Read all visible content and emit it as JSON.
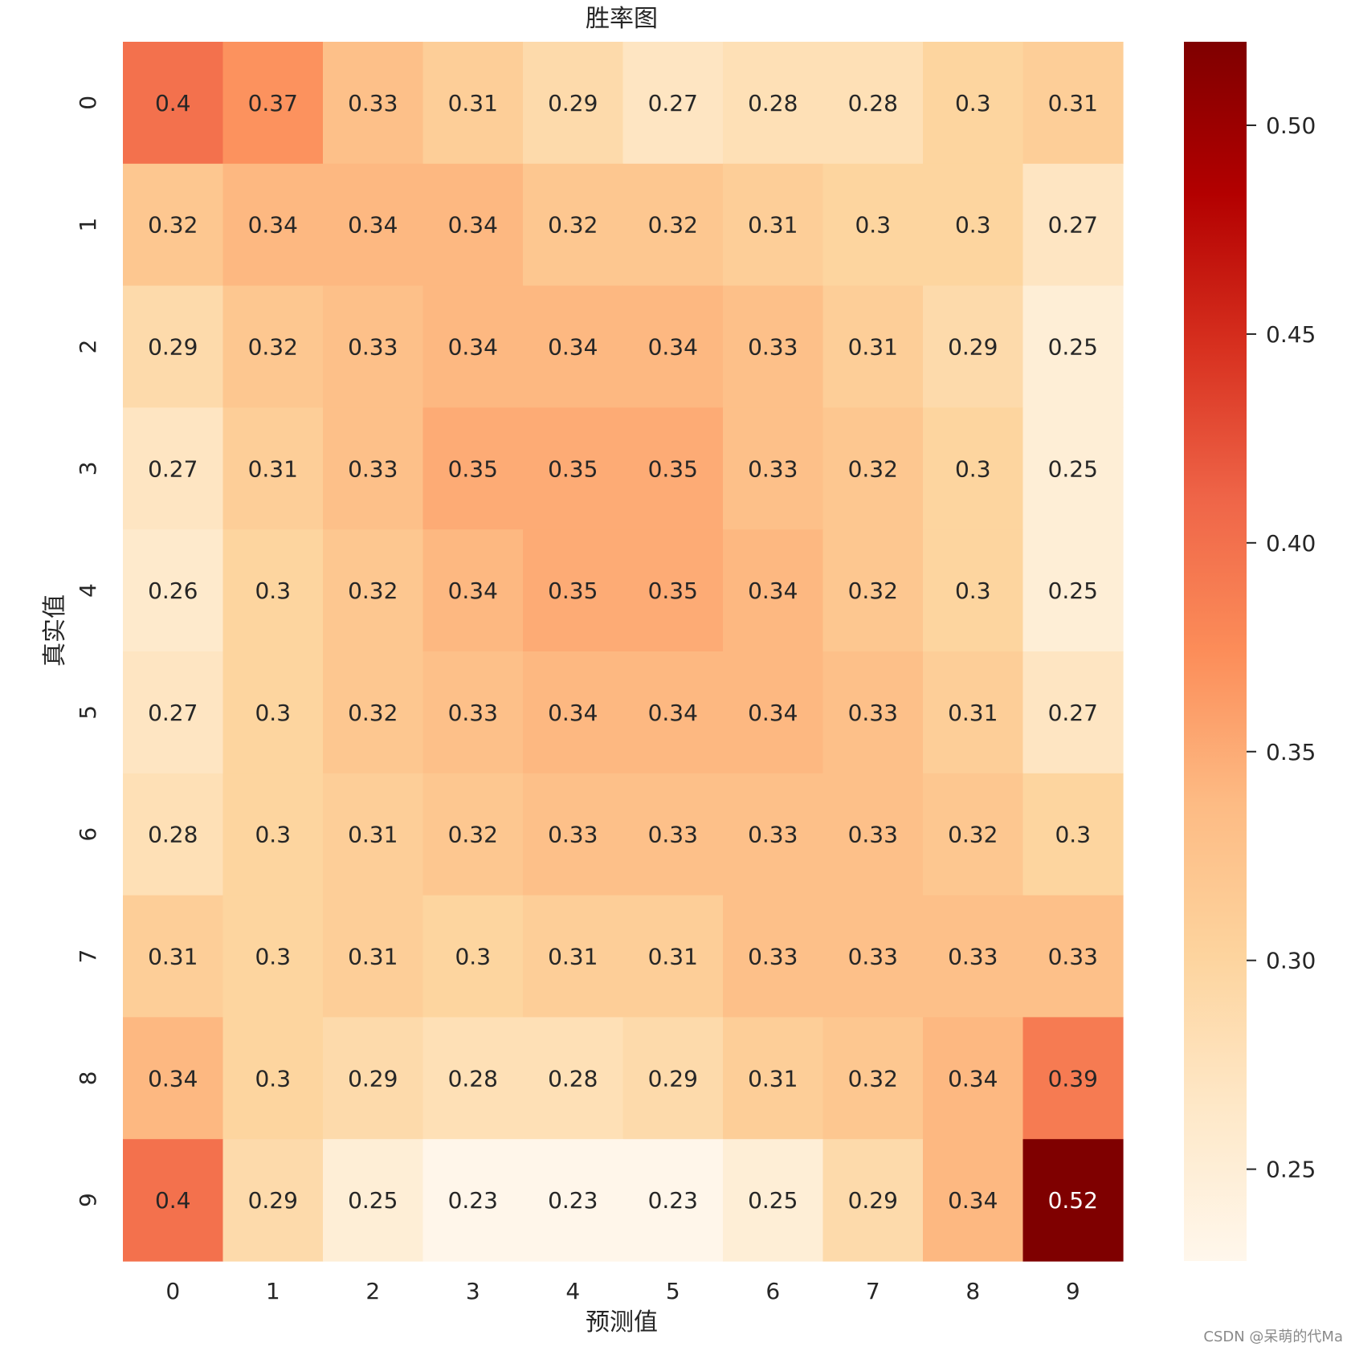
{
  "chart_data": {
    "type": "heatmap",
    "title": "胜率图",
    "xlabel": "预测值",
    "ylabel": "真实值",
    "x_categories": [
      "0",
      "1",
      "2",
      "3",
      "4",
      "5",
      "6",
      "7",
      "8",
      "9"
    ],
    "y_categories": [
      "0",
      "1",
      "2",
      "3",
      "4",
      "5",
      "6",
      "7",
      "8",
      "9"
    ],
    "values": [
      [
        0.4,
        0.37,
        0.33,
        0.31,
        0.29,
        0.27,
        0.28,
        0.28,
        0.3,
        0.31
      ],
      [
        0.32,
        0.34,
        0.34,
        0.34,
        0.32,
        0.32,
        0.31,
        0.3,
        0.3,
        0.27
      ],
      [
        0.29,
        0.32,
        0.33,
        0.34,
        0.34,
        0.34,
        0.33,
        0.31,
        0.29,
        0.25
      ],
      [
        0.27,
        0.31,
        0.33,
        0.35,
        0.35,
        0.35,
        0.33,
        0.32,
        0.3,
        0.25
      ],
      [
        0.26,
        0.3,
        0.32,
        0.34,
        0.35,
        0.35,
        0.34,
        0.32,
        0.3,
        0.25
      ],
      [
        0.27,
        0.3,
        0.32,
        0.33,
        0.34,
        0.34,
        0.34,
        0.33,
        0.31,
        0.27
      ],
      [
        0.28,
        0.3,
        0.31,
        0.32,
        0.33,
        0.33,
        0.33,
        0.33,
        0.32,
        0.3
      ],
      [
        0.31,
        0.3,
        0.31,
        0.3,
        0.31,
        0.31,
        0.33,
        0.33,
        0.33,
        0.33
      ],
      [
        0.34,
        0.3,
        0.29,
        0.28,
        0.28,
        0.29,
        0.31,
        0.32,
        0.34,
        0.39
      ],
      [
        0.4,
        0.29,
        0.25,
        0.23,
        0.23,
        0.23,
        0.25,
        0.29,
        0.34,
        0.52
      ]
    ],
    "colormap": "OrRd",
    "colorbar": {
      "range": [
        0.228,
        0.52
      ],
      "ticks": [
        0.25,
        0.3,
        0.35,
        0.4,
        0.45,
        0.5
      ],
      "tick_labels": [
        "0.25",
        "0.30",
        "0.35",
        "0.40",
        "0.45",
        "0.50"
      ]
    },
    "colors": {
      "stops": [
        "#fff7ec",
        "#fee8c8",
        "#fdd49e",
        "#fdbb84",
        "#fc8d59",
        "#ef6548",
        "#d7301f",
        "#b30000",
        "#7f0000"
      ]
    }
  },
  "watermark": "CSDN @呆萌的代Ma"
}
